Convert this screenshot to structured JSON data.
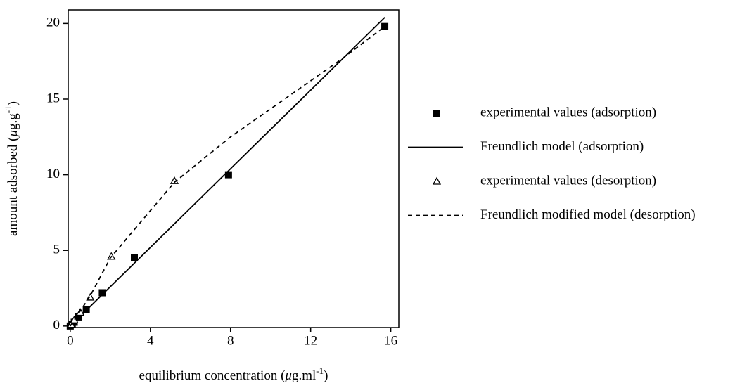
{
  "chart_data": {
    "type": "line",
    "x_label": [
      "equilibrium concentration (",
      "μ",
      "g.ml",
      "-1",
      ")"
    ],
    "y_label": [
      "amount adsorbed (",
      "μ",
      "g.g",
      "-1",
      ")"
    ],
    "xlim": [
      -0.1,
      16.4
    ],
    "ylim": [
      -0.1,
      20.9
    ],
    "xticks": [
      0,
      4,
      8,
      12,
      16
    ],
    "yticks": [
      0,
      5,
      10,
      15,
      20
    ],
    "legend": "right",
    "series": [
      {
        "name": "experimental values (adsorption)",
        "style": "square",
        "color": "#000000",
        "x": [
          0,
          0.1,
          0.2,
          0.4,
          0.8,
          1.6,
          3.2,
          7.9,
          15.7
        ],
        "values": [
          0,
          0.1,
          0.25,
          0.6,
          1.1,
          2.2,
          4.5,
          10,
          19.8
        ]
      },
      {
        "name": "Freundlich model (adsorption)",
        "style": "solid",
        "color": "#000000",
        "x": [
          0,
          15.7
        ],
        "values": [
          0,
          20.4
        ]
      },
      {
        "name": "experimental values (desorption)",
        "style": "triangle",
        "color": "#000000",
        "x": [
          0.05,
          0.2,
          0.5,
          1.0,
          2.05,
          5.2
        ],
        "values": [
          0.1,
          0.4,
          0.9,
          1.9,
          4.6,
          9.6
        ]
      },
      {
        "name": "Freundlich modified model (desorption)",
        "style": "dashed",
        "color": "#000000",
        "x": [
          0,
          1,
          2,
          5.2,
          8,
          13.5,
          15.7
        ],
        "values": [
          0,
          2,
          4.5,
          9.5,
          12.5,
          17.6,
          19.8
        ]
      }
    ]
  }
}
